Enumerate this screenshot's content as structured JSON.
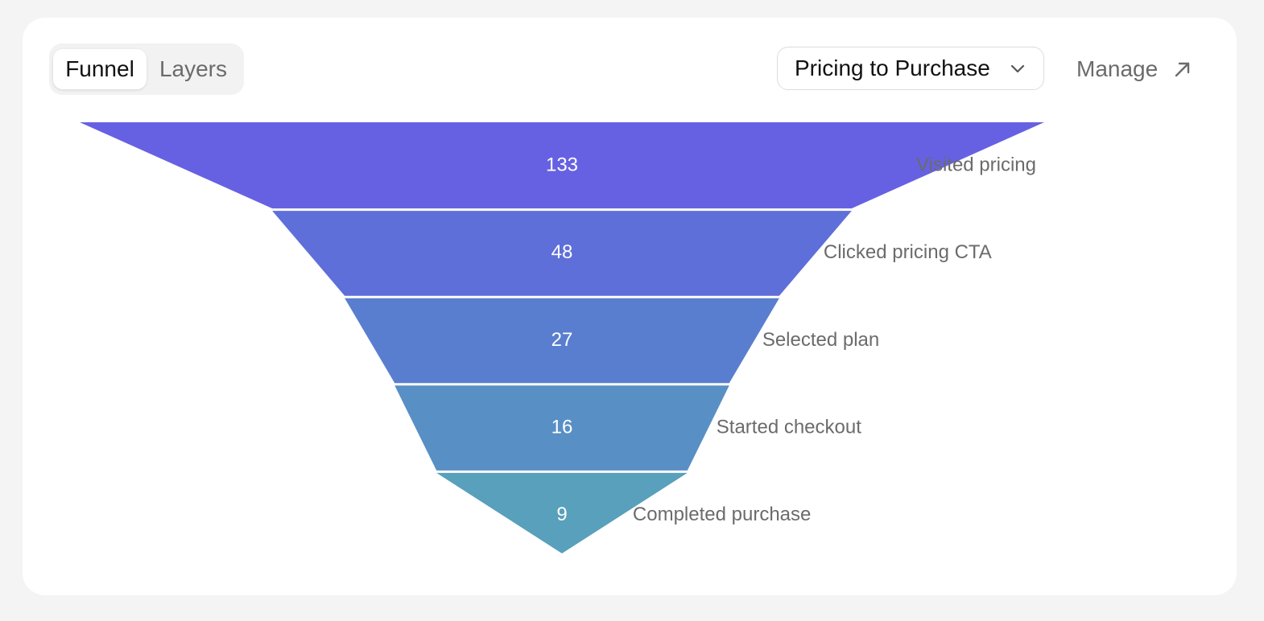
{
  "toolbar": {
    "tabs": [
      {
        "label": "Funnel",
        "active": true
      },
      {
        "label": "Layers",
        "active": false
      }
    ],
    "funnel_select": {
      "selected": "Pricing to Purchase",
      "icon": "chevron-down-icon"
    },
    "manage": {
      "label": "Manage",
      "icon": "arrow-up-right-icon"
    }
  },
  "chart_data": {
    "type": "funnel",
    "stages": [
      {
        "label": "Visited pricing",
        "value": 133,
        "color": "#6661E2"
      },
      {
        "label": "Clicked pricing CTA",
        "value": 48,
        "color": "#5E6FD9"
      },
      {
        "label": "Selected plan",
        "value": 27,
        "color": "#5A7ECF"
      },
      {
        "label": "Started checkout",
        "value": 16,
        "color": "#588FC5"
      },
      {
        "label": "Completed purchase",
        "value": 9,
        "color": "#58A0BB"
      }
    ]
  }
}
